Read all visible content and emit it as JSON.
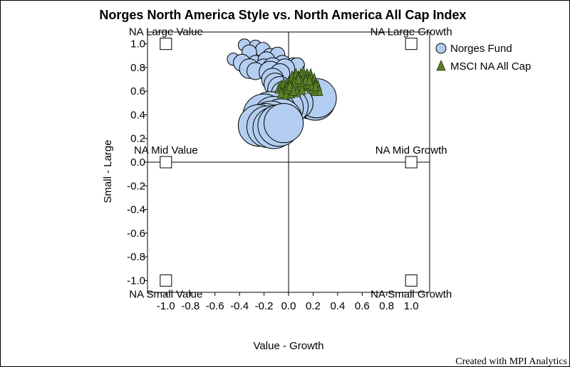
{
  "chart_data": {
    "type": "scatter",
    "title": "Norges North America Style vs. North America All Cap Index",
    "xlabel": "Value - Growth",
    "ylabel": "Small - Large",
    "xlim": [
      -1.15,
      1.15
    ],
    "ylim": [
      -1.1,
      1.1
    ],
    "xticks": [
      -1.0,
      -0.8,
      -0.6,
      -0.4,
      -0.2,
      0.0,
      0.2,
      0.4,
      0.6,
      0.8,
      1.0
    ],
    "yticks": [
      -1.0,
      -0.8,
      -0.6,
      -0.4,
      -0.2,
      0.0,
      0.2,
      0.4,
      0.6,
      0.8,
      1.0
    ],
    "xtick_labels": [
      "-1.0",
      "-0.8",
      "-0.6",
      "-0.4",
      "-0.2",
      "0.0",
      "0.2",
      "0.4",
      "0.6",
      "0.8",
      "1.0"
    ],
    "ytick_labels": [
      "-1.0",
      "-0.8",
      "-0.6",
      "-0.4",
      "-0.2",
      "0.0",
      "0.2",
      "0.4",
      "0.6",
      "0.8",
      "1.0"
    ],
    "legend_position": "right",
    "style_boxes": [
      {
        "label": "NA Large Value",
        "x": -1.0,
        "y": 1.0
      },
      {
        "label": "NA Large Growth",
        "x": 1.0,
        "y": 1.0
      },
      {
        "label": "NA Mid Value",
        "x": -1.0,
        "y": 0.0
      },
      {
        "label": "NA Mid Growth",
        "x": 1.0,
        "y": 0.0
      },
      {
        "label": "NA Small Value",
        "x": -1.0,
        "y": -1.0
      },
      {
        "label": "NA Small Growth",
        "x": 1.0,
        "y": -1.0
      }
    ],
    "series": [
      {
        "name": "Norges Fund",
        "marker": "circle",
        "color": "#b3cef0",
        "points": [
          {
            "x": -0.36,
            "y": 0.99,
            "s": 0.05
          },
          {
            "x": -0.27,
            "y": 0.98,
            "s": 0.05
          },
          {
            "x": -0.21,
            "y": 0.95,
            "s": 0.06
          },
          {
            "x": -0.32,
            "y": 0.93,
            "s": 0.06
          },
          {
            "x": -0.15,
            "y": 0.9,
            "s": 0.06
          },
          {
            "x": -0.09,
            "y": 0.91,
            "s": 0.06
          },
          {
            "x": -0.45,
            "y": 0.87,
            "s": 0.05
          },
          {
            "x": -0.38,
            "y": 0.84,
            "s": 0.07
          },
          {
            "x": -0.27,
            "y": 0.84,
            "s": 0.06
          },
          {
            "x": -0.18,
            "y": 0.86,
            "s": 0.07
          },
          {
            "x": -0.05,
            "y": 0.83,
            "s": 0.07
          },
          {
            "x": 0.04,
            "y": 0.82,
            "s": 0.06
          },
          {
            "x": 0.07,
            "y": 0.82,
            "s": 0.06
          },
          {
            "x": -0.32,
            "y": 0.79,
            "s": 0.08
          },
          {
            "x": -0.2,
            "y": 0.79,
            "s": 0.08
          },
          {
            "x": -0.13,
            "y": 0.8,
            "s": 0.08
          },
          {
            "x": -0.03,
            "y": 0.79,
            "s": 0.08
          },
          {
            "x": -0.27,
            "y": 0.77,
            "s": 0.07
          },
          {
            "x": -0.15,
            "y": 0.76,
            "s": 0.09
          },
          {
            "x": -0.07,
            "y": 0.75,
            "s": 0.08
          },
          {
            "x": -0.13,
            "y": 0.7,
            "s": 0.09
          },
          {
            "x": -0.11,
            "y": 0.66,
            "s": 0.09
          },
          {
            "x": -0.07,
            "y": 0.62,
            "s": 0.1
          },
          {
            "x": -0.04,
            "y": 0.58,
            "s": 0.1
          },
          {
            "x": 0.0,
            "y": 0.56,
            "s": 0.11
          },
          {
            "x": 0.05,
            "y": 0.56,
            "s": 0.12
          },
          {
            "x": 0.1,
            "y": 0.55,
            "s": 0.13
          },
          {
            "x": 0.15,
            "y": 0.54,
            "s": 0.14
          },
          {
            "x": 0.18,
            "y": 0.52,
            "s": 0.15
          },
          {
            "x": 0.22,
            "y": 0.52,
            "s": 0.16
          },
          {
            "x": 0.23,
            "y": 0.54,
            "s": 0.16
          },
          {
            "x": 0.07,
            "y": 0.5,
            "s": 0.13
          },
          {
            "x": 0.02,
            "y": 0.47,
            "s": 0.14
          },
          {
            "x": -0.03,
            "y": 0.46,
            "s": 0.15
          },
          {
            "x": -0.1,
            "y": 0.43,
            "s": 0.16
          },
          {
            "x": -0.15,
            "y": 0.42,
            "s": 0.17
          },
          {
            "x": -0.2,
            "y": 0.4,
            "s": 0.17
          },
          {
            "x": -0.12,
            "y": 0.38,
            "s": 0.17
          },
          {
            "x": -0.06,
            "y": 0.36,
            "s": 0.17
          },
          {
            "x": -0.14,
            "y": 0.34,
            "s": 0.17
          },
          {
            "x": -0.19,
            "y": 0.32,
            "s": 0.17
          },
          {
            "x": -0.24,
            "y": 0.31,
            "s": 0.17
          },
          {
            "x": -0.17,
            "y": 0.3,
            "s": 0.17
          },
          {
            "x": -0.12,
            "y": 0.29,
            "s": 0.17
          },
          {
            "x": -0.08,
            "y": 0.31,
            "s": 0.17
          },
          {
            "x": -0.04,
            "y": 0.33,
            "s": 0.16
          }
        ]
      },
      {
        "name": "MSCI NA All Cap",
        "marker": "triangle",
        "color": "#5d7f27",
        "points": [
          {
            "x": -0.08,
            "y": 0.6
          },
          {
            "x": -0.06,
            "y": 0.62
          },
          {
            "x": -0.04,
            "y": 0.64
          },
          {
            "x": -0.02,
            "y": 0.63
          },
          {
            "x": 0.0,
            "y": 0.65
          },
          {
            "x": 0.02,
            "y": 0.67
          },
          {
            "x": 0.03,
            "y": 0.7
          },
          {
            "x": 0.05,
            "y": 0.69
          },
          {
            "x": 0.06,
            "y": 0.72
          },
          {
            "x": 0.08,
            "y": 0.7
          },
          {
            "x": 0.1,
            "y": 0.72
          },
          {
            "x": 0.12,
            "y": 0.74
          },
          {
            "x": 0.13,
            "y": 0.71
          },
          {
            "x": 0.15,
            "y": 0.72
          },
          {
            "x": 0.16,
            "y": 0.7
          },
          {
            "x": 0.18,
            "y": 0.72
          },
          {
            "x": 0.19,
            "y": 0.69
          },
          {
            "x": 0.2,
            "y": 0.66
          },
          {
            "x": 0.21,
            "y": 0.68
          },
          {
            "x": 0.22,
            "y": 0.64
          },
          {
            "x": 0.23,
            "y": 0.6
          },
          {
            "x": 0.24,
            "y": 0.62
          },
          {
            "x": 0.25,
            "y": 0.58
          },
          {
            "x": 0.21,
            "y": 0.58
          },
          {
            "x": 0.18,
            "y": 0.6
          },
          {
            "x": 0.15,
            "y": 0.62
          },
          {
            "x": 0.12,
            "y": 0.63
          },
          {
            "x": 0.09,
            "y": 0.62
          },
          {
            "x": 0.06,
            "y": 0.61
          },
          {
            "x": 0.03,
            "y": 0.6
          },
          {
            "x": 0.0,
            "y": 0.58
          },
          {
            "x": -0.03,
            "y": 0.57
          },
          {
            "x": -0.06,
            "y": 0.56
          },
          {
            "x": -0.02,
            "y": 0.55
          },
          {
            "x": 0.02,
            "y": 0.56
          },
          {
            "x": 0.07,
            "y": 0.57
          },
          {
            "x": 0.11,
            "y": 0.59
          },
          {
            "x": 0.16,
            "y": 0.64
          },
          {
            "x": 0.19,
            "y": 0.63
          },
          {
            "x": 0.14,
            "y": 0.67
          },
          {
            "x": 0.1,
            "y": 0.66
          },
          {
            "x": 0.05,
            "y": 0.65
          },
          {
            "x": -0.01,
            "y": 0.6
          },
          {
            "x": 0.01,
            "y": 0.62
          },
          {
            "x": 0.08,
            "y": 0.68
          },
          {
            "x": 0.17,
            "y": 0.67
          },
          {
            "x": 0.22,
            "y": 0.62
          },
          {
            "x": 0.04,
            "y": 0.58
          }
        ]
      }
    ]
  },
  "footer": {
    "credit": "Created with MPI Analytics"
  }
}
